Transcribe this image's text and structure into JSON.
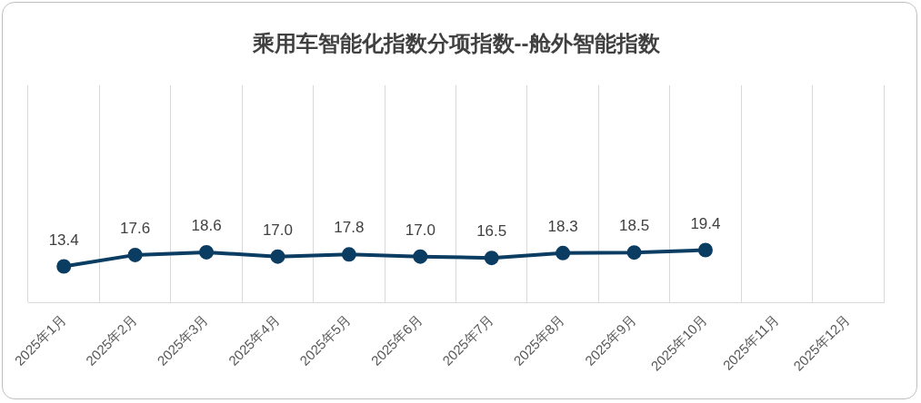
{
  "chart_data": {
    "type": "line",
    "title": "乘用车智能化指数分项指数--舱外智能指数",
    "categories": [
      "2025年1月",
      "2025年2月",
      "2025年3月",
      "2025年4月",
      "2025年5月",
      "2025年6月",
      "2025年7月",
      "2025年8月",
      "2025年9月",
      "2025年10月",
      "2025年11月",
      "2025年12月"
    ],
    "series": [
      {
        "color": "#0b3c61",
        "values": [
          13.4,
          17.6,
          18.6,
          17.0,
          17.8,
          17.0,
          16.5,
          18.3,
          18.5,
          19.4,
          null,
          null
        ],
        "value_labels": [
          "13.4",
          "17.6",
          "18.6",
          "17.0",
          "17.8",
          "17.0",
          "16.5",
          "18.3",
          "18.5",
          "19.4",
          null,
          null
        ]
      }
    ],
    "grid": "x",
    "marker": "circle",
    "line_style": "solid"
  }
}
